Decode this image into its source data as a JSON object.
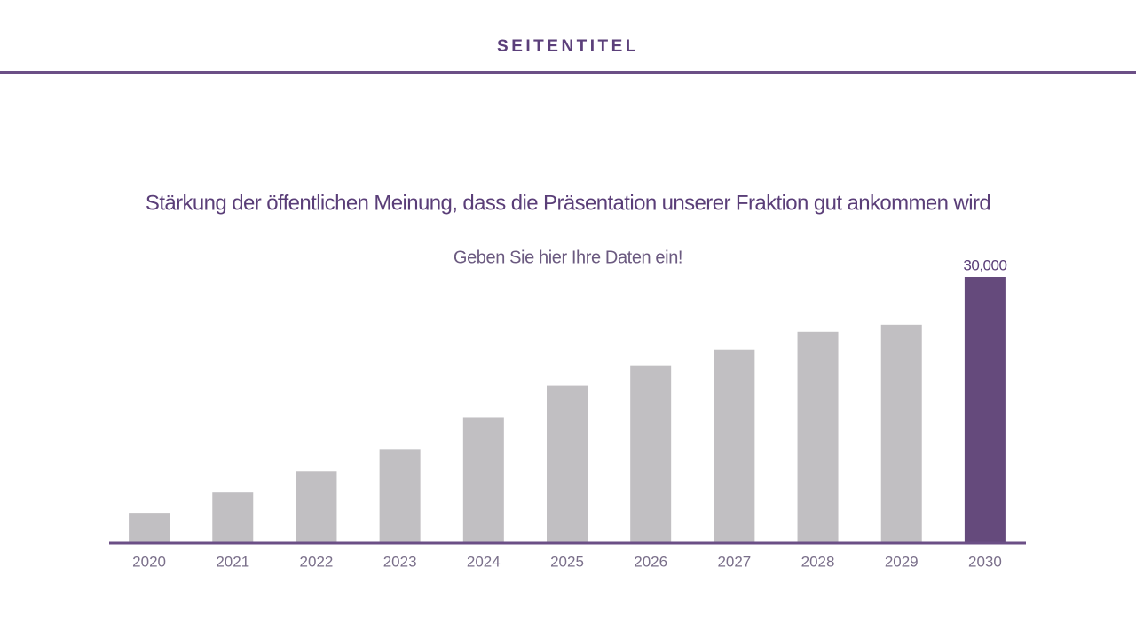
{
  "header": {
    "title": "SEITENTITEL"
  },
  "chart_data": {
    "type": "bar",
    "title": "Stärkung der öffentlichen Meinung, dass die Präsentation unserer Fraktion gut ankommen wird",
    "subtitle": "Geben Sie hier Ihre Daten ein!",
    "categories": [
      "2020",
      "2021",
      "2022",
      "2023",
      "2024",
      "2025",
      "2026",
      "2027",
      "2028",
      "2029",
      "2030"
    ],
    "values": [
      3300,
      5700,
      8000,
      10500,
      14100,
      17700,
      20000,
      21800,
      23800,
      24600,
      30000
    ],
    "value_labels": [
      null,
      null,
      null,
      null,
      null,
      null,
      null,
      null,
      null,
      null,
      "30,000"
    ],
    "colors": [
      "#c1bfc2",
      "#c1bfc2",
      "#c1bfc2",
      "#c1bfc2",
      "#c1bfc2",
      "#c1bfc2",
      "#c1bfc2",
      "#c1bfc2",
      "#c1bfc2",
      "#c1bfc2",
      "#654a7c"
    ]
  }
}
